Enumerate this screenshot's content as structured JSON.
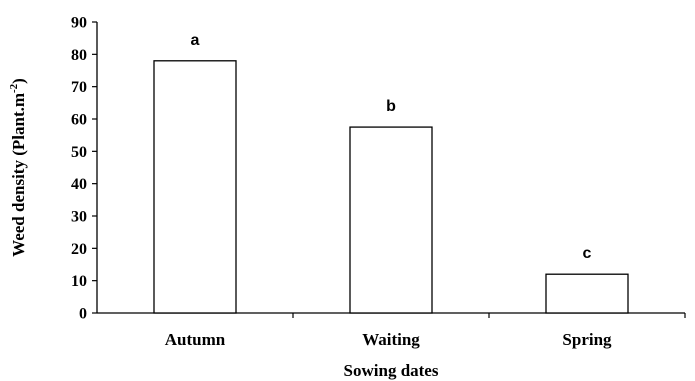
{
  "chart_data": {
    "type": "bar",
    "categories": [
      "Autumn",
      "Waiting",
      "Spring"
    ],
    "values": [
      78,
      57.5,
      12
    ],
    "data_labels": [
      "a",
      "b",
      "c"
    ],
    "xlabel": "Sowing dates",
    "ylabel": "Weed density (Plant.m",
    "ylabel_superscript": "-2",
    "ylabel_suffix": ")",
    "ylim": [
      0,
      90
    ],
    "yticks": [
      0,
      10,
      20,
      30,
      40,
      50,
      60,
      70,
      80,
      90
    ],
    "grid": false,
    "bar_fill": "#ffffff",
    "bar_stroke": "#000000"
  }
}
